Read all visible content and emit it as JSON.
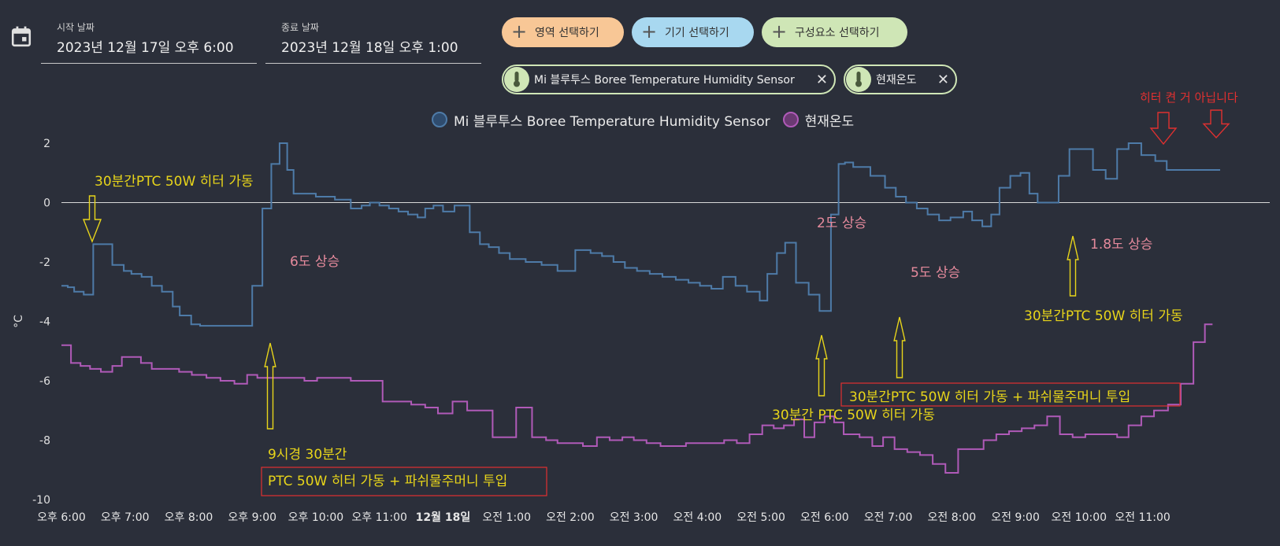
{
  "start_date": {
    "label": "시작 날짜",
    "value": "2023년 12월 17일 오후 6:00"
  },
  "end_date": {
    "label": "종료 날짜",
    "value": "2023년 12월 18일 오후 1:00"
  },
  "buttons": {
    "area": "영역 선택하기",
    "device": "기기 선택하기",
    "component": "구성요소 선택하기"
  },
  "chips": {
    "sensor": "Mi 블루투스 Boree Temperature Humidity Sensor",
    "current": "현재온도"
  },
  "colors": {
    "series1": "#4e7ba8",
    "series2": "#b05ab8",
    "annotation_yellow": "#e8d51a",
    "annotation_pink": "#e58a9c",
    "annotation_red": "#e03030",
    "pill_area": "#f8c796",
    "pill_device": "#a8d8f0",
    "pill_component": "#cfe6b6"
  },
  "chart_data": {
    "type": "line",
    "step": true,
    "ylabel": "°C",
    "ylim": [
      -10,
      2
    ],
    "yticks": [
      "2",
      "0",
      "-2",
      "-4",
      "-6",
      "-8",
      "-10"
    ],
    "xlim": [
      0,
      19
    ],
    "x_tick_labels": [
      "오후 6:00",
      "오후 7:00",
      "오후 8:00",
      "오후 9:00",
      "오후 10:00",
      "오후 11:00",
      "12월 18일",
      "오전 1:00",
      "오전 2:00",
      "오전 3:00",
      "오전 4:00",
      "오전 5:00",
      "오전 6:00",
      "오전 7:00",
      "오전 8:00",
      "오전 9:00",
      "오전 10:00",
      "오전 11:00"
    ],
    "bold_tick": "12월 18일",
    "series": [
      {
        "name": "Mi 블루투스 Boree Temperature Humidity Sensor",
        "x": [
          0,
          0.1,
          0.2,
          0.35,
          0.5,
          0.62,
          0.8,
          0.98,
          1.1,
          1.26,
          1.42,
          1.58,
          1.75,
          1.86,
          2.04,
          2.18,
          2.35,
          2.52,
          2.82,
          3.0,
          3.16,
          3.3,
          3.43,
          3.55,
          3.65,
          3.8,
          4.0,
          4.3,
          4.55,
          4.72,
          4.85,
          5.0,
          5.15,
          5.3,
          5.45,
          5.6,
          5.72,
          5.85,
          6.0,
          6.18,
          6.42,
          6.58,
          6.72,
          6.88,
          7.05,
          7.3,
          7.55,
          7.8,
          8.08,
          8.32,
          8.5,
          8.68,
          8.86,
          9.05,
          9.25,
          9.45,
          9.66,
          9.86,
          10.04,
          10.22,
          10.4,
          10.6,
          10.78,
          10.98,
          11.1,
          11.25,
          11.38,
          11.55,
          11.75,
          11.92,
          12.1,
          12.22,
          12.32,
          12.45,
          12.72,
          12.95,
          13.12,
          13.28,
          13.45,
          13.62,
          13.8,
          13.98,
          14.18,
          14.32,
          14.48,
          14.62,
          14.75,
          14.92,
          15.08,
          15.22,
          15.35,
          15.52,
          15.68,
          15.85,
          16.05,
          16.22,
          16.42,
          16.6,
          16.78,
          16.98,
          17.2,
          17.38,
          17.58,
          17.78,
          17.95,
          18.1
        ],
        "values": [
          -2.8,
          -2.85,
          -3.0,
          -3.1,
          -1.4,
          -1.4,
          -2.1,
          -2.3,
          -2.4,
          -2.5,
          -2.8,
          -3.0,
          -3.5,
          -3.8,
          -4.1,
          -4.15,
          -4.15,
          -4.15,
          -4.15,
          -2.8,
          -0.2,
          1.3,
          2.0,
          1.1,
          0.3,
          0.3,
          0.2,
          0.1,
          -0.2,
          -0.1,
          0.0,
          -0.1,
          -0.2,
          -0.3,
          -0.4,
          -0.5,
          -0.2,
          -0.1,
          -0.3,
          -0.1,
          -1.0,
          -1.4,
          -1.5,
          -1.7,
          -1.9,
          -2.0,
          -2.1,
          -2.3,
          -1.6,
          -1.7,
          -1.8,
          -2.0,
          -2.2,
          -2.3,
          -2.4,
          -2.5,
          -2.6,
          -2.7,
          -2.8,
          -2.9,
          -2.5,
          -2.8,
          -3.0,
          -3.3,
          -2.4,
          -1.7,
          -1.35,
          -2.7,
          -3.1,
          -3.65,
          -0.4,
          1.3,
          1.35,
          1.2,
          0.9,
          0.5,
          0.2,
          0.0,
          -0.2,
          -0.4,
          -0.6,
          -0.5,
          -0.3,
          -0.6,
          -0.8,
          -0.4,
          0.5,
          0.9,
          1.0,
          0.3,
          0.0,
          0.0,
          0.9,
          1.8,
          1.8,
          1.1,
          0.8,
          1.8,
          2.0,
          1.6,
          1.4,
          1.1,
          1.1,
          1.1,
          1.1,
          1.1
        ],
        "color": "#4e7ba8"
      },
      {
        "name": "현재온도",
        "x": [
          0,
          0.15,
          0.3,
          0.45,
          0.62,
          0.8,
          0.95,
          1.1,
          1.25,
          1.42,
          1.62,
          1.85,
          2.05,
          2.28,
          2.5,
          2.72,
          2.92,
          3.08,
          3.22,
          3.42,
          3.62,
          3.82,
          4.02,
          4.3,
          4.55,
          4.82,
          5.05,
          5.3,
          5.5,
          5.72,
          5.92,
          6.15,
          6.38,
          6.6,
          6.78,
          6.95,
          7.15,
          7.4,
          7.62,
          7.8,
          8.0,
          8.2,
          8.42,
          8.62,
          8.82,
          9.0,
          9.2,
          9.42,
          9.62,
          9.82,
          10.05,
          10.25,
          10.42,
          10.62,
          10.82,
          11.02,
          11.2,
          11.36,
          11.52,
          11.68,
          11.84,
          12.0,
          12.15,
          12.3,
          12.55,
          12.75,
          12.92,
          13.1,
          13.3,
          13.5,
          13.7,
          13.9,
          14.1,
          14.3,
          14.5,
          14.7,
          14.9,
          15.1,
          15.3,
          15.5,
          15.7,
          15.9,
          16.1,
          16.28,
          16.45,
          16.6,
          16.78,
          16.98,
          17.18,
          17.4,
          17.6,
          17.8,
          17.98
        ],
        "values": [
          -4.8,
          -5.4,
          -5.5,
          -5.6,
          -5.7,
          -5.5,
          -5.2,
          -5.2,
          -5.4,
          -5.6,
          -5.6,
          -5.7,
          -5.8,
          -5.9,
          -6.0,
          -6.1,
          -5.8,
          -5.9,
          -5.9,
          -5.9,
          -5.9,
          -6.0,
          -5.9,
          -5.9,
          -6.0,
          -6.0,
          -6.7,
          -6.7,
          -6.8,
          -6.9,
          -7.1,
          -6.7,
          -7.0,
          -7.0,
          -7.9,
          -7.9,
          -6.9,
          -7.9,
          -8.0,
          -8.1,
          -8.1,
          -8.2,
          -7.9,
          -8.0,
          -7.9,
          -8.0,
          -8.1,
          -8.2,
          -8.2,
          -8.1,
          -8.1,
          -8.1,
          -8.0,
          -8.1,
          -7.8,
          -7.5,
          -7.6,
          -7.5,
          -7.3,
          -7.9,
          -7.4,
          -7.2,
          -7.4,
          -7.8,
          -7.9,
          -8.2,
          -7.9,
          -8.3,
          -8.4,
          -8.5,
          -8.8,
          -9.1,
          -8.3,
          -8.3,
          -8.0,
          -7.8,
          -7.7,
          -7.6,
          -7.5,
          -7.2,
          -7.8,
          -7.9,
          -7.8,
          -7.8,
          -7.8,
          -7.9,
          -7.5,
          -7.2,
          -7.0,
          -6.8,
          -6.1,
          -4.7,
          -4.1
        ],
        "color": "#b05ab8"
      }
    ],
    "annotations": [
      {
        "text": "30분간PTC 50W 히터 가동",
        "color": "#e8d51a"
      },
      {
        "text": "6도 상승",
        "color": "#e58a9c"
      },
      {
        "text": "9시경 30분간",
        "color": "#e8d51a"
      },
      {
        "text": "PTC 50W 히터 가동 + 파쉬물주머니 투입",
        "color": "#e8d51a"
      },
      {
        "text": "2도 상승",
        "color": "#e58a9c"
      },
      {
        "text": "5도 상승",
        "color": "#e58a9c"
      },
      {
        "text": "30분간 PTC 50W 히터 가동",
        "color": "#e8d51a"
      },
      {
        "text": "30분간PTC 50W 히터 가동 + 파쉬물주머니 투입",
        "color": "#e8d51a"
      },
      {
        "text": "1.8도 상승",
        "color": "#e58a9c"
      },
      {
        "text": "30분간PTC 50W 히터 가동",
        "color": "#e8d51a"
      },
      {
        "text": "히터 켠 거 아닙니다",
        "color": "#e03030"
      }
    ]
  }
}
